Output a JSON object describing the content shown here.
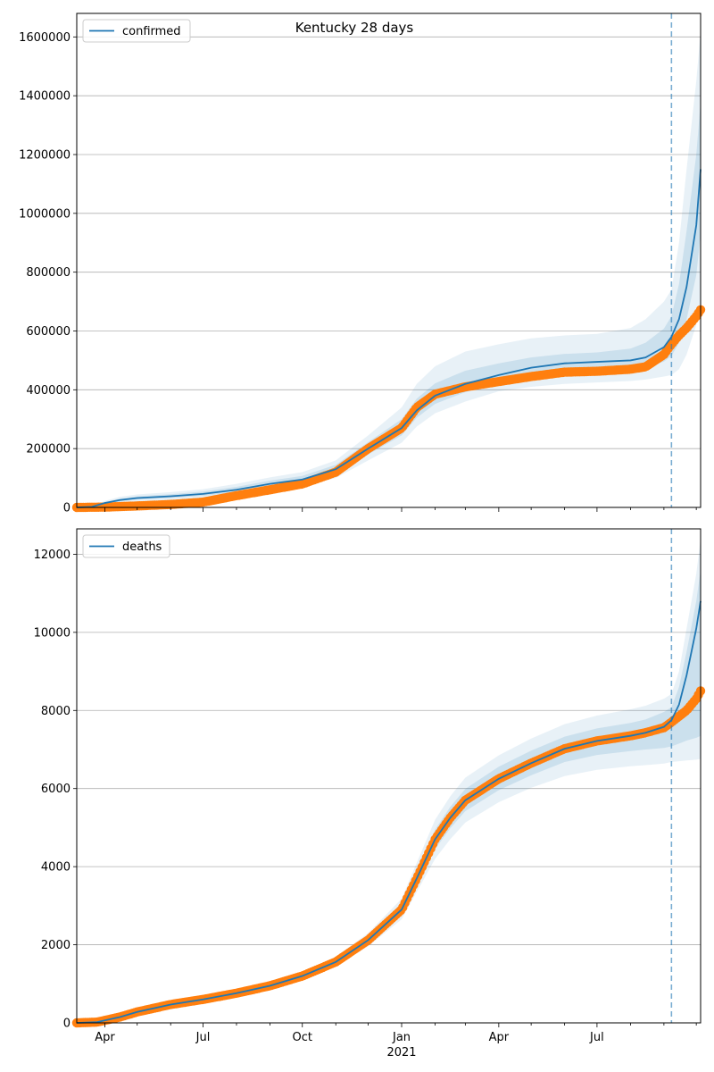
{
  "title": "Kentucky 28 days",
  "colors": {
    "model": "#1f77b4",
    "observed": "#ff7f0e",
    "grid": "#b0b0b0",
    "band": "#1f77b4"
  },
  "chart_data": [
    {
      "type": "line",
      "legend": {
        "label": "confirmed",
        "placement": "upper-left"
      },
      "ylim": [
        0,
        1680000
      ],
      "y_ticks": [
        0,
        200000,
        400000,
        600000,
        800000,
        1000000,
        1200000,
        1400000,
        1600000
      ],
      "y_tick_labels": [
        "0",
        "200000",
        "400000",
        "600000",
        "800000",
        "1000000",
        "1200000",
        "1400000",
        "1600000"
      ],
      "grid": "y",
      "forecast_start": "2021-09-08",
      "model": {
        "x": [
          "2020-03-06",
          "2020-03-20",
          "2020-04-01",
          "2020-04-15",
          "2020-05-01",
          "2020-06-01",
          "2020-07-01",
          "2020-08-01",
          "2020-09-01",
          "2020-10-01",
          "2020-11-01",
          "2020-12-01",
          "2021-01-01",
          "2021-01-15",
          "2021-02-01",
          "2021-03-01",
          "2021-04-01",
          "2021-05-01",
          "2021-06-01",
          "2021-07-01",
          "2021-08-01",
          "2021-08-15",
          "2021-09-01",
          "2021-09-08",
          "2021-09-15",
          "2021-09-22",
          "2021-10-01",
          "2021-10-05"
        ],
        "values": [
          0,
          2000,
          15000,
          25000,
          32000,
          38000,
          46000,
          60000,
          80000,
          95000,
          130000,
          200000,
          270000,
          330000,
          380000,
          420000,
          450000,
          475000,
          490000,
          495000,
          500000,
          510000,
          545000,
          580000,
          640000,
          750000,
          960000,
          1150000
        ]
      },
      "bands": [
        {
          "level": "outer",
          "lower": [
            0,
            0,
            8000,
            14000,
            20000,
            25000,
            31000,
            42000,
            58000,
            72000,
            100000,
            160000,
            220000,
            275000,
            320000,
            360000,
            395000,
            410000,
            420000,
            425000,
            430000,
            435000,
            445000,
            450000,
            470000,
            520000,
            620000,
            700000
          ],
          "upper": [
            0,
            5000,
            22000,
            36000,
            44000,
            52000,
            62000,
            80000,
            102000,
            120000,
            160000,
            245000,
            340000,
            420000,
            480000,
            530000,
            555000,
            575000,
            585000,
            590000,
            610000,
            640000,
            700000,
            740000,
            900000,
            1150000,
            1450000,
            1620000
          ]
        },
        {
          "level": "inner",
          "lower": [
            0,
            1000,
            12000,
            20000,
            27000,
            32000,
            39000,
            52000,
            70000,
            84000,
            115000,
            180000,
            245000,
            305000,
            352000,
            392000,
            424000,
            444000,
            456000,
            461000,
            466000,
            474000,
            496000,
            515000,
            560000,
            640000,
            790000,
            930000
          ],
          "upper": [
            0,
            3000,
            18000,
            30000,
            38000,
            45000,
            54000,
            70000,
            91000,
            107000,
            145000,
            222000,
            300000,
            370000,
            422000,
            465000,
            490000,
            510000,
            522000,
            527000,
            540000,
            560000,
            608000,
            650000,
            760000,
            940000,
            1200000,
            1380000
          ]
        }
      ],
      "observed": {
        "x": [
          "2020-03-06",
          "2020-04-01",
          "2020-05-01",
          "2020-06-01",
          "2020-07-01",
          "2020-08-01",
          "2020-09-01",
          "2020-10-01",
          "2020-11-01",
          "2020-12-01",
          "2021-01-01",
          "2021-01-15",
          "2021-02-01",
          "2021-03-01",
          "2021-04-01",
          "2021-05-01",
          "2021-06-01",
          "2021-07-01",
          "2021-08-01",
          "2021-08-15",
          "2021-09-01",
          "2021-09-08",
          "2021-09-15",
          "2021-09-22",
          "2021-10-01",
          "2021-10-05"
        ],
        "values": [
          0,
          1000,
          5000,
          10000,
          18000,
          40000,
          60000,
          80000,
          120000,
          200000,
          270000,
          340000,
          385000,
          410000,
          428000,
          445000,
          460000,
          463000,
          470000,
          478000,
          520000,
          555000,
          585000,
          610000,
          650000,
          672000
        ]
      }
    },
    {
      "type": "line",
      "legend": {
        "label": "deaths",
        "placement": "upper-left"
      },
      "ylim": [
        0,
        12650
      ],
      "y_ticks": [
        0,
        2000,
        4000,
        6000,
        8000,
        10000,
        12000
      ],
      "y_tick_labels": [
        "0",
        "2000",
        "4000",
        "6000",
        "8000",
        "10000",
        "12000"
      ],
      "grid": "y",
      "forecast_start": "2021-09-08",
      "model": {
        "x": [
          "2020-03-06",
          "2020-03-25",
          "2020-04-15",
          "2020-05-01",
          "2020-06-01",
          "2020-07-01",
          "2020-08-01",
          "2020-09-01",
          "2020-10-01",
          "2020-11-01",
          "2020-12-01",
          "2021-01-01",
          "2021-01-15",
          "2021-02-01",
          "2021-02-15",
          "2021-03-01",
          "2021-04-01",
          "2021-05-01",
          "2021-06-01",
          "2021-07-01",
          "2021-08-01",
          "2021-08-15",
          "2021-09-01",
          "2021-09-08",
          "2021-09-15",
          "2021-09-22",
          "2021-10-01",
          "2021-10-05"
        ],
        "values": [
          0,
          20,
          150,
          280,
          470,
          600,
          760,
          950,
          1200,
          1560,
          2120,
          2900,
          3700,
          4700,
          5250,
          5700,
          6250,
          6650,
          7020,
          7220,
          7350,
          7430,
          7580,
          7750,
          8150,
          8900,
          10100,
          10800
        ]
      },
      "bands": [
        {
          "level": "outer",
          "lower": [
            0,
            10,
            120,
            240,
            420,
            540,
            700,
            880,
            1110,
            1450,
            1960,
            2650,
            3350,
            4200,
            4700,
            5130,
            5650,
            6020,
            6320,
            6480,
            6570,
            6600,
            6640,
            6680,
            6700,
            6720,
            6740,
            6760
          ],
          "upper": [
            0,
            30,
            180,
            320,
            520,
            660,
            820,
            1030,
            1300,
            1700,
            2300,
            3180,
            4100,
            5200,
            5800,
            6280,
            6850,
            7280,
            7650,
            7870,
            8030,
            8120,
            8300,
            8420,
            9000,
            10100,
            11500,
            12400
          ]
        },
        {
          "level": "inner",
          "lower": [
            0,
            15,
            135,
            260,
            445,
            570,
            730,
            915,
            1155,
            1500,
            2040,
            2780,
            3520,
            4450,
            4980,
            5420,
            5960,
            6340,
            6680,
            6860,
            6960,
            7000,
            7040,
            7080,
            7150,
            7230,
            7300,
            7350
          ],
          "upper": [
            0,
            25,
            165,
            300,
            495,
            630,
            790,
            990,
            1250,
            1630,
            2210,
            3040,
            3890,
            4950,
            5530,
            5990,
            6560,
            6970,
            7330,
            7540,
            7680,
            7770,
            7960,
            8080,
            8600,
            9500,
            10800,
            11600
          ]
        }
      ],
      "observed": {
        "x": [
          "2020-03-06",
          "2020-03-25",
          "2020-04-15",
          "2020-05-01",
          "2020-06-01",
          "2020-07-01",
          "2020-08-01",
          "2020-09-01",
          "2020-10-01",
          "2020-11-01",
          "2020-12-01",
          "2021-01-01",
          "2021-01-15",
          "2021-02-01",
          "2021-02-15",
          "2021-03-01",
          "2021-04-01",
          "2021-05-01",
          "2021-06-01",
          "2021-07-01",
          "2021-08-01",
          "2021-08-15",
          "2021-09-01",
          "2021-09-08",
          "2021-09-15",
          "2021-09-22",
          "2021-10-01",
          "2021-10-05"
        ],
        "values": [
          0,
          20,
          150,
          280,
          470,
          600,
          760,
          950,
          1200,
          1560,
          2120,
          2900,
          3700,
          4700,
          5250,
          5700,
          6250,
          6650,
          7020,
          7220,
          7350,
          7430,
          7560,
          7700,
          7850,
          8000,
          8300,
          8500
        ]
      }
    }
  ],
  "x_axis": {
    "xlim": [
      "2020-03-06",
      "2021-10-05"
    ],
    "tick_dates": [
      "2020-04-01",
      "2020-07-01",
      "2020-10-01",
      "2021-01-01",
      "2021-04-01",
      "2021-07-01"
    ],
    "tick_labels": [
      "Apr",
      "Jul",
      "Oct",
      "Jan",
      "Apr",
      "Jul"
    ],
    "year_label": "2021"
  }
}
